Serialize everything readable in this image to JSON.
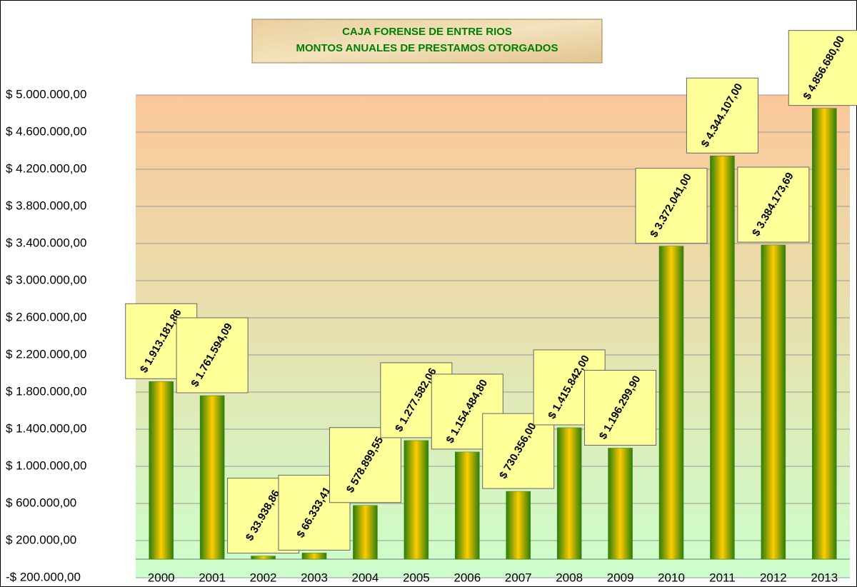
{
  "chart_data": {
    "type": "bar",
    "title_lines": [
      "CAJA FORENSE DE ENTRE RIOS",
      "MONTOS ANUALES DE PRESTAMOS OTORGADOS"
    ],
    "categories": [
      "2000",
      "2001",
      "2002",
      "2003",
      "2004",
      "2005",
      "2006",
      "2007",
      "2008",
      "2009",
      "2010",
      "2011",
      "2012",
      "2013"
    ],
    "values": [
      1913181.86,
      1761594.09,
      33938.86,
      66333.41,
      578899.55,
      1277582.06,
      1154484.8,
      730356.0,
      1415842.0,
      1196299.9,
      3372041.0,
      4344107.0,
      3384173.69,
      4856680.0
    ],
    "value_labels": [
      "$ 1.913.181,86",
      "$ 1.761.594,09",
      "$ 33.938,86",
      "$ 66.333,41",
      "$ 578.899,55",
      "$ 1.277.582,06",
      "$ 1.154.484,80",
      "$ 730.356,00",
      "$ 1.415.842,00",
      "$ 1.196.299,90",
      "$ 3.372.041,00",
      "$ 4.344.107,00",
      "$ 3.384.173,69",
      "$ 4.856.680,00"
    ],
    "color": "#2e8b0a",
    "ylim": [
      -200000,
      5000000
    ],
    "yticks": [
      {
        "value": -200000,
        "label": "-$ 200.000,00"
      },
      {
        "value": 200000,
        "label": "$ 200.000,00"
      },
      {
        "value": 600000,
        "label": "$ 600.000,00"
      },
      {
        "value": 1000000,
        "label": "$ 1.000.000,00"
      },
      {
        "value": 1400000,
        "label": "$ 1.400.000,00"
      },
      {
        "value": 1800000,
        "label": "$ 1.800.000,00"
      },
      {
        "value": 2200000,
        "label": "$ 2.200.000,00"
      },
      {
        "value": 2600000,
        "label": "$ 2.600.000,00"
      },
      {
        "value": 3000000,
        "label": "$ 3.000.000,00"
      },
      {
        "value": 3400000,
        "label": "$ 3.400.000,00"
      },
      {
        "value": 3800000,
        "label": "$ 3.800.000,00"
      },
      {
        "value": 4200000,
        "label": "$ 4.200.000,00"
      },
      {
        "value": 4600000,
        "label": "$ 4.600.000,00"
      },
      {
        "value": 5000000,
        "label": "$ 5.000.000,00"
      }
    ],
    "grid": true
  }
}
